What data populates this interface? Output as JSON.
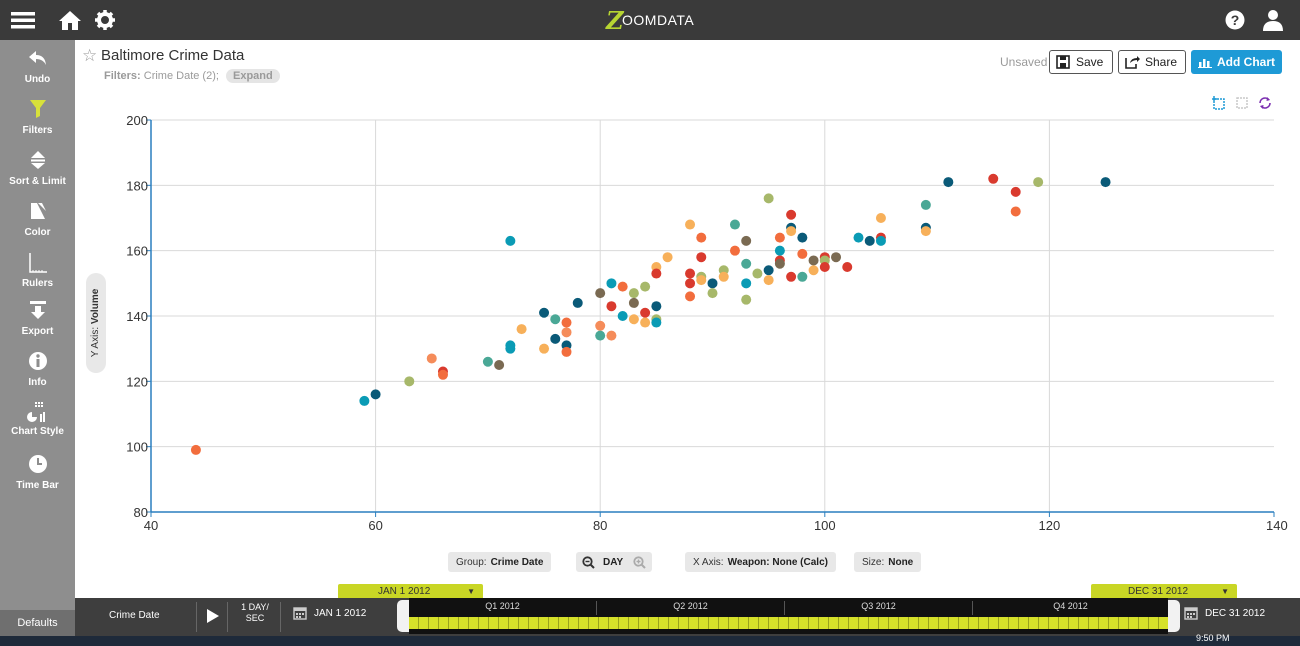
{
  "app": {
    "brand_letter": "Z",
    "brand_rest": "OOMDATA"
  },
  "topbar": {
    "menu_icon": "hamburger-menu-icon",
    "home_icon": "home-icon",
    "settings_icon": "gear-icon",
    "help_icon": "help-icon",
    "user_icon": "user-icon"
  },
  "sidebar": {
    "items": [
      {
        "label": "Undo",
        "icon": "undo-icon",
        "color": "#ffffff"
      },
      {
        "label": "Filters",
        "icon": "filter-icon",
        "color": "#d8e13a"
      },
      {
        "label": "Sort & Limit",
        "icon": "sort-icon",
        "color": "#ffffff"
      },
      {
        "label": "Color",
        "icon": "color-icon",
        "color": "#ffffff"
      },
      {
        "label": "Rulers",
        "icon": "rulers-icon",
        "color": "#ffffff"
      },
      {
        "label": "Export",
        "icon": "export-icon",
        "color": "#ffffff"
      },
      {
        "label": "Info",
        "icon": "info-icon",
        "color": "#ffffff"
      },
      {
        "label": "Chart Style",
        "icon": "chart-style-icon",
        "color": "#ffffff"
      },
      {
        "label": "Time Bar",
        "icon": "clock-icon",
        "color": "#ffffff"
      }
    ],
    "defaults_label": "Defaults"
  },
  "header": {
    "title": "Baltimore Crime Data",
    "filters_label": "Filters:",
    "filters_value": "Crime Date (2);",
    "expand_label": "Expand",
    "unsaved_label": "Unsaved",
    "save_label": "Save",
    "share_label": "Share",
    "add_chart_label": "Add Chart",
    "accent_color": "#1e9ad6"
  },
  "chart_data": {
    "type": "scatter",
    "title": "",
    "xlabel": "",
    "ylabel_prefix": "Y Axis:",
    "ylabel": "Volume",
    "xlim": [
      40,
      140
    ],
    "ylim": [
      80,
      200
    ],
    "xticks": [
      40,
      60,
      80,
      100,
      120,
      140
    ],
    "xtick_labels": [
      "40",
      "60",
      "80",
      "100",
      "120",
      "140"
    ],
    "yticks": [
      80,
      100,
      120,
      140,
      160,
      180,
      200
    ],
    "ytick_labels": [
      "80",
      "100",
      "120",
      "140",
      "160",
      "180",
      "200"
    ],
    "grid": true,
    "colors": [
      "#f26d3d",
      "#0a9bb5",
      "#0a5a78",
      "#e8a03c",
      "#d93a2e",
      "#4aa896",
      "#7a6a52",
      "#a7b86a",
      "#f7b05a",
      "#f58c5a"
    ],
    "points": [
      [
        44,
        99,
        0
      ],
      [
        59,
        114,
        1
      ],
      [
        60,
        116,
        2
      ],
      [
        63,
        120,
        7
      ],
      [
        65,
        127,
        9
      ],
      [
        66,
        123,
        4
      ],
      [
        66,
        122,
        0
      ],
      [
        70,
        126,
        5
      ],
      [
        71,
        125,
        6
      ],
      [
        72,
        163,
        1
      ],
      [
        72,
        131,
        1
      ],
      [
        72,
        130,
        1
      ],
      [
        73,
        136,
        8
      ],
      [
        75,
        141,
        2
      ],
      [
        75,
        130,
        8
      ],
      [
        76,
        139,
        5
      ],
      [
        76,
        133,
        2
      ],
      [
        77,
        138,
        0
      ],
      [
        77,
        135,
        9
      ],
      [
        77,
        131,
        2
      ],
      [
        77,
        129,
        0
      ],
      [
        78,
        144,
        2
      ],
      [
        80,
        147,
        6
      ],
      [
        80,
        137,
        9
      ],
      [
        80,
        134,
        5
      ],
      [
        81,
        150,
        1
      ],
      [
        81,
        143,
        4
      ],
      [
        81,
        134,
        9
      ],
      [
        82,
        149,
        0
      ],
      [
        82,
        140,
        1
      ],
      [
        83,
        147,
        7
      ],
      [
        83,
        144,
        6
      ],
      [
        83,
        139,
        8
      ],
      [
        84,
        149,
        7
      ],
      [
        84,
        141,
        4
      ],
      [
        84,
        138,
        8
      ],
      [
        85,
        155,
        8
      ],
      [
        85,
        153,
        4
      ],
      [
        85,
        143,
        2
      ],
      [
        85,
        139,
        7
      ],
      [
        85,
        138,
        1
      ],
      [
        86,
        158,
        8
      ],
      [
        88,
        168,
        8
      ],
      [
        88,
        153,
        4
      ],
      [
        88,
        150,
        4
      ],
      [
        88,
        146,
        0
      ],
      [
        89,
        164,
        0
      ],
      [
        89,
        158,
        4
      ],
      [
        89,
        152,
        7
      ],
      [
        89,
        151,
        8
      ],
      [
        90,
        150,
        2
      ],
      [
        90,
        147,
        7
      ],
      [
        91,
        154,
        7
      ],
      [
        91,
        152,
        8
      ],
      [
        92,
        168,
        5
      ],
      [
        92,
        160,
        0
      ],
      [
        93,
        163,
        6
      ],
      [
        93,
        156,
        5
      ],
      [
        93,
        150,
        1
      ],
      [
        93,
        145,
        7
      ],
      [
        94,
        153,
        7
      ],
      [
        95,
        176,
        7
      ],
      [
        95,
        154,
        2
      ],
      [
        95,
        151,
        8
      ],
      [
        96,
        164,
        0
      ],
      [
        96,
        160,
        1
      ],
      [
        96,
        157,
        4
      ],
      [
        96,
        156,
        6
      ],
      [
        97,
        171,
        4
      ],
      [
        97,
        167,
        2
      ],
      [
        97,
        166,
        8
      ],
      [
        97,
        152,
        4
      ],
      [
        98,
        164,
        2
      ],
      [
        98,
        159,
        0
      ],
      [
        98,
        152,
        5
      ],
      [
        99,
        157,
        6
      ],
      [
        99,
        154,
        8
      ],
      [
        100,
        158,
        4
      ],
      [
        100,
        157,
        7
      ],
      [
        100,
        155,
        4
      ],
      [
        101,
        158,
        6
      ],
      [
        102,
        155,
        4
      ],
      [
        103,
        164,
        1
      ],
      [
        104,
        163,
        2
      ],
      [
        105,
        164,
        4
      ],
      [
        105,
        163,
        1
      ],
      [
        105,
        170,
        8
      ],
      [
        109,
        174,
        5
      ],
      [
        109,
        167,
        2
      ],
      [
        109,
        166,
        8
      ],
      [
        111,
        181,
        2
      ],
      [
        115,
        182,
        4
      ],
      [
        117,
        178,
        4
      ],
      [
        117,
        172,
        0
      ],
      [
        119,
        181,
        7
      ],
      [
        125,
        181,
        2
      ]
    ]
  },
  "controls": {
    "group_label": "Group:",
    "group_value": "Crime Date",
    "zoom_out_icon": "zoom-out-icon",
    "unit_value": "DAY",
    "zoom_in_icon": "zoom-in-icon",
    "xaxis_label": "X Axis:",
    "xaxis_value": "Weapon: None (Calc)",
    "size_label": "Size:",
    "size_value": "None"
  },
  "timebar": {
    "field_label": "Crime Date",
    "speed_top": "1 DAY/",
    "speed_bottom": "SEC",
    "start_date": "JAN 1 2012",
    "end_date": "DEC 31 2012",
    "flag_start": "JAN 1 2012",
    "flag_end": "DEC 31 2012",
    "quarters": [
      "Q1 2012",
      "Q2 2012",
      "Q3 2012",
      "Q4 2012"
    ],
    "accent_color": "#c9d625"
  },
  "taskbar": {
    "clock": "9:50 PM"
  }
}
